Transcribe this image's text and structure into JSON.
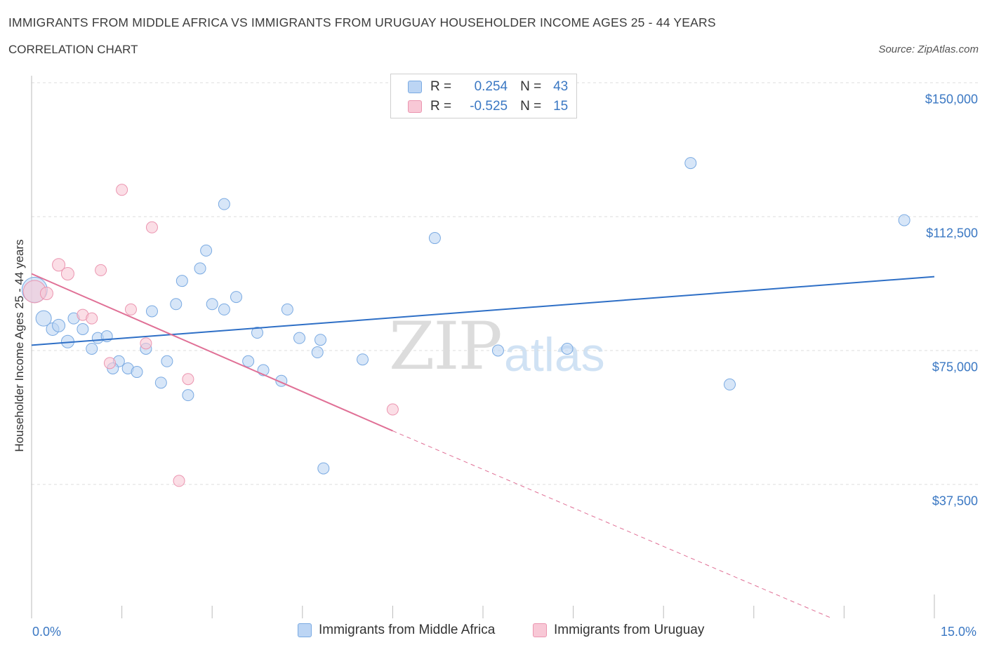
{
  "title": "IMMIGRANTS FROM MIDDLE AFRICA VS IMMIGRANTS FROM URUGUAY HOUSEHOLDER INCOME AGES 25 - 44 YEARS",
  "subtitle": "CORRELATION CHART",
  "source": "Source: ZipAtlas.com",
  "watermark": {
    "zip": "ZIP",
    "atlas": "atlas"
  },
  "legend": {
    "r_label": "R =",
    "n_label": "N =",
    "series1": {
      "r": "0.254",
      "n": "43"
    },
    "series2": {
      "r": "-0.525",
      "n": "15"
    }
  },
  "colors": {
    "blue_fill": "#bcd5f4",
    "blue_stroke": "#7aaae2",
    "blue_line": "#2e6fc6",
    "pink_fill": "#f8c8d6",
    "pink_stroke": "#eb95b0",
    "pink_line": "#e07096",
    "grid": "#dddddd",
    "axis_text": "#3b78c3"
  },
  "chart_data": {
    "type": "scatter",
    "title": "IMMIGRANTS FROM MIDDLE AFRICA VS IMMIGRANTS FROM URUGUAY HOUSEHOLDER INCOME AGES 25 - 44 YEARS",
    "xlabel": "",
    "ylabel": "Householder Income Ages 25 - 44 years",
    "xlim": [
      0,
      15
    ],
    "ylim": [
      0,
      150000
    ],
    "x_tick_labels": [
      "0.0%",
      "15.0%"
    ],
    "y_ticks": [
      {
        "value": 37500,
        "label": "$37,500"
      },
      {
        "value": 75000,
        "label": "$75,000"
      },
      {
        "value": 112500,
        "label": "$112,500"
      },
      {
        "value": 150000,
        "label": "$150,000"
      }
    ],
    "series": [
      {
        "name": "Immigrants from Middle Africa",
        "color": "blue",
        "r": 0.254,
        "n": 43,
        "trend": {
          "x": [
            0.0,
            15.0
          ],
          "y": [
            76500,
            95700
          ]
        },
        "points": [
          [
            0.05,
            92000,
            18
          ],
          [
            0.2,
            84000,
            11
          ],
          [
            0.35,
            81000,
            9
          ],
          [
            0.45,
            82000,
            9
          ],
          [
            0.6,
            77500,
            9
          ],
          [
            0.7,
            84000,
            8
          ],
          [
            0.85,
            81000,
            8
          ],
          [
            1.0,
            75500,
            8
          ],
          [
            1.1,
            78500,
            8
          ],
          [
            1.25,
            79000,
            8
          ],
          [
            1.45,
            72000,
            8
          ],
          [
            1.35,
            70000,
            8
          ],
          [
            1.6,
            70000,
            8
          ],
          [
            1.75,
            69000,
            8
          ],
          [
            1.9,
            75500,
            8
          ],
          [
            2.0,
            86000,
            8
          ],
          [
            2.15,
            66000,
            8
          ],
          [
            2.25,
            72000,
            8
          ],
          [
            2.4,
            88000,
            8
          ],
          [
            2.5,
            94500,
            8
          ],
          [
            2.6,
            62500,
            8
          ],
          [
            2.8,
            98000,
            8
          ],
          [
            2.9,
            103000,
            8
          ],
          [
            3.2,
            116000,
            8
          ],
          [
            3.0,
            88000,
            8
          ],
          [
            3.2,
            86500,
            8
          ],
          [
            3.4,
            90000,
            8
          ],
          [
            3.6,
            72000,
            8
          ],
          [
            3.75,
            80000,
            8
          ],
          [
            3.85,
            69500,
            8
          ],
          [
            4.15,
            66500,
            8
          ],
          [
            4.25,
            86500,
            8
          ],
          [
            4.45,
            78500,
            8
          ],
          [
            4.75,
            74500,
            8
          ],
          [
            4.8,
            78000,
            8
          ],
          [
            4.85,
            42000,
            8
          ],
          [
            5.5,
            72500,
            8
          ],
          [
            6.7,
            106500,
            8
          ],
          [
            7.75,
            75000,
            8
          ],
          [
            8.9,
            75500,
            8
          ],
          [
            10.95,
            127500,
            8
          ],
          [
            11.6,
            65500,
            8
          ],
          [
            14.5,
            111500,
            8
          ]
        ]
      },
      {
        "name": "Immigrants from Uruguay",
        "color": "pink",
        "r": -0.525,
        "n": 15,
        "trend": {
          "x": [
            0.0,
            6.0
          ],
          "y": [
            96500,
            52500
          ]
        },
        "trend_dashed": {
          "x": [
            6.0,
            13.3
          ],
          "y": [
            52500,
            0
          ]
        },
        "points": [
          [
            0.05,
            91500,
            16
          ],
          [
            0.25,
            91000,
            9
          ],
          [
            0.45,
            99000,
            9
          ],
          [
            0.6,
            96500,
            9
          ],
          [
            0.85,
            85000,
            8
          ],
          [
            1.0,
            84000,
            8
          ],
          [
            1.15,
            97500,
            8
          ],
          [
            1.3,
            71500,
            8
          ],
          [
            1.5,
            120000,
            8
          ],
          [
            1.65,
            86500,
            8
          ],
          [
            1.9,
            77000,
            8
          ],
          [
            2.0,
            109500,
            8
          ],
          [
            2.45,
            38500,
            8
          ],
          [
            2.6,
            67000,
            8
          ],
          [
            6.0,
            58500,
            8
          ]
        ]
      }
    ],
    "legend_labels": [
      "Immigrants from Middle Africa",
      "Immigrants from Uruguay"
    ]
  }
}
